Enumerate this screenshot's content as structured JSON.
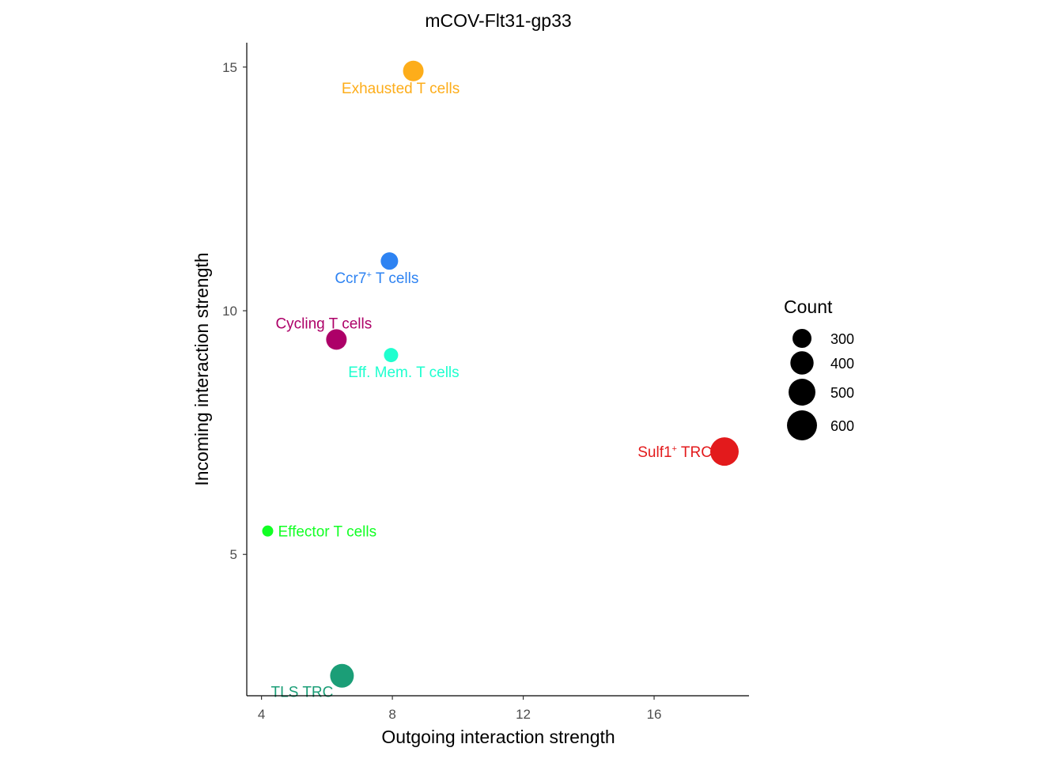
{
  "chart_data": {
    "type": "scatter",
    "title": "mCOV-Flt31-gp33",
    "xlabel": "Outgoing interaction strength",
    "ylabel": "Incoming interaction strength",
    "xlim": [
      3.55,
      18.9
    ],
    "ylim": [
      2.1,
      15.5
    ],
    "xticks": [
      4,
      8,
      12,
      16
    ],
    "yticks": [
      5,
      10,
      15
    ],
    "grid": false,
    "legend": {
      "title": "Count",
      "placement": "right",
      "entries": [
        {
          "label": "300",
          "value": 300
        },
        {
          "label": "400",
          "value": 400
        },
        {
          "label": "500",
          "value": 500
        },
        {
          "label": "600",
          "value": 600
        }
      ]
    },
    "points": [
      {
        "name": "Exhausted T cells",
        "label_main": "Exhausted T cells",
        "label_sup": "",
        "label_tail": "",
        "x": 8.64,
        "y": 14.92,
        "count": 335,
        "color": "#FDAD1A",
        "label_pos": "below"
      },
      {
        "name": "Ccr7+ T cells",
        "label_main": "Ccr7",
        "label_sup": "+",
        "label_tail": " T cells",
        "x": 7.91,
        "y": 11.02,
        "count": 268,
        "color": "#2E83F2",
        "label_pos": "below"
      },
      {
        "name": "Cycling T cells",
        "label_main": "Cycling T cells",
        "label_sup": "",
        "label_tail": "",
        "x": 6.29,
        "y": 9.41,
        "count": 335,
        "color": "#AD0068",
        "label_pos": "above"
      },
      {
        "name": "Eff. Mem. T cells",
        "label_main": "Eff. Mem. T cells",
        "label_sup": "",
        "label_tail": "",
        "x": 7.96,
        "y": 9.09,
        "count": 212,
        "color": "#1FFFCF",
        "label_pos": "below"
      },
      {
        "name": "Sulf1+ TRC",
        "label_main": "Sulf1",
        "label_sup": "+",
        "label_tail": " TRC",
        "x": 18.15,
        "y": 7.11,
        "count": 550,
        "color": "#E31A1C",
        "label_pos": "left"
      },
      {
        "name": "Effector T cells",
        "label_main": "Effector T cells",
        "label_sup": "",
        "label_tail": "",
        "x": 4.19,
        "y": 5.48,
        "count": 168,
        "color": "#12FF24",
        "label_pos": "right"
      },
      {
        "name": "TLS TRC",
        "label_main": "TLS TRC",
        "label_sup": "",
        "label_tail": "",
        "x": 6.46,
        "y": 2.51,
        "count": 412,
        "color": "#1B9E77",
        "label_pos": "below-left"
      }
    ]
  }
}
